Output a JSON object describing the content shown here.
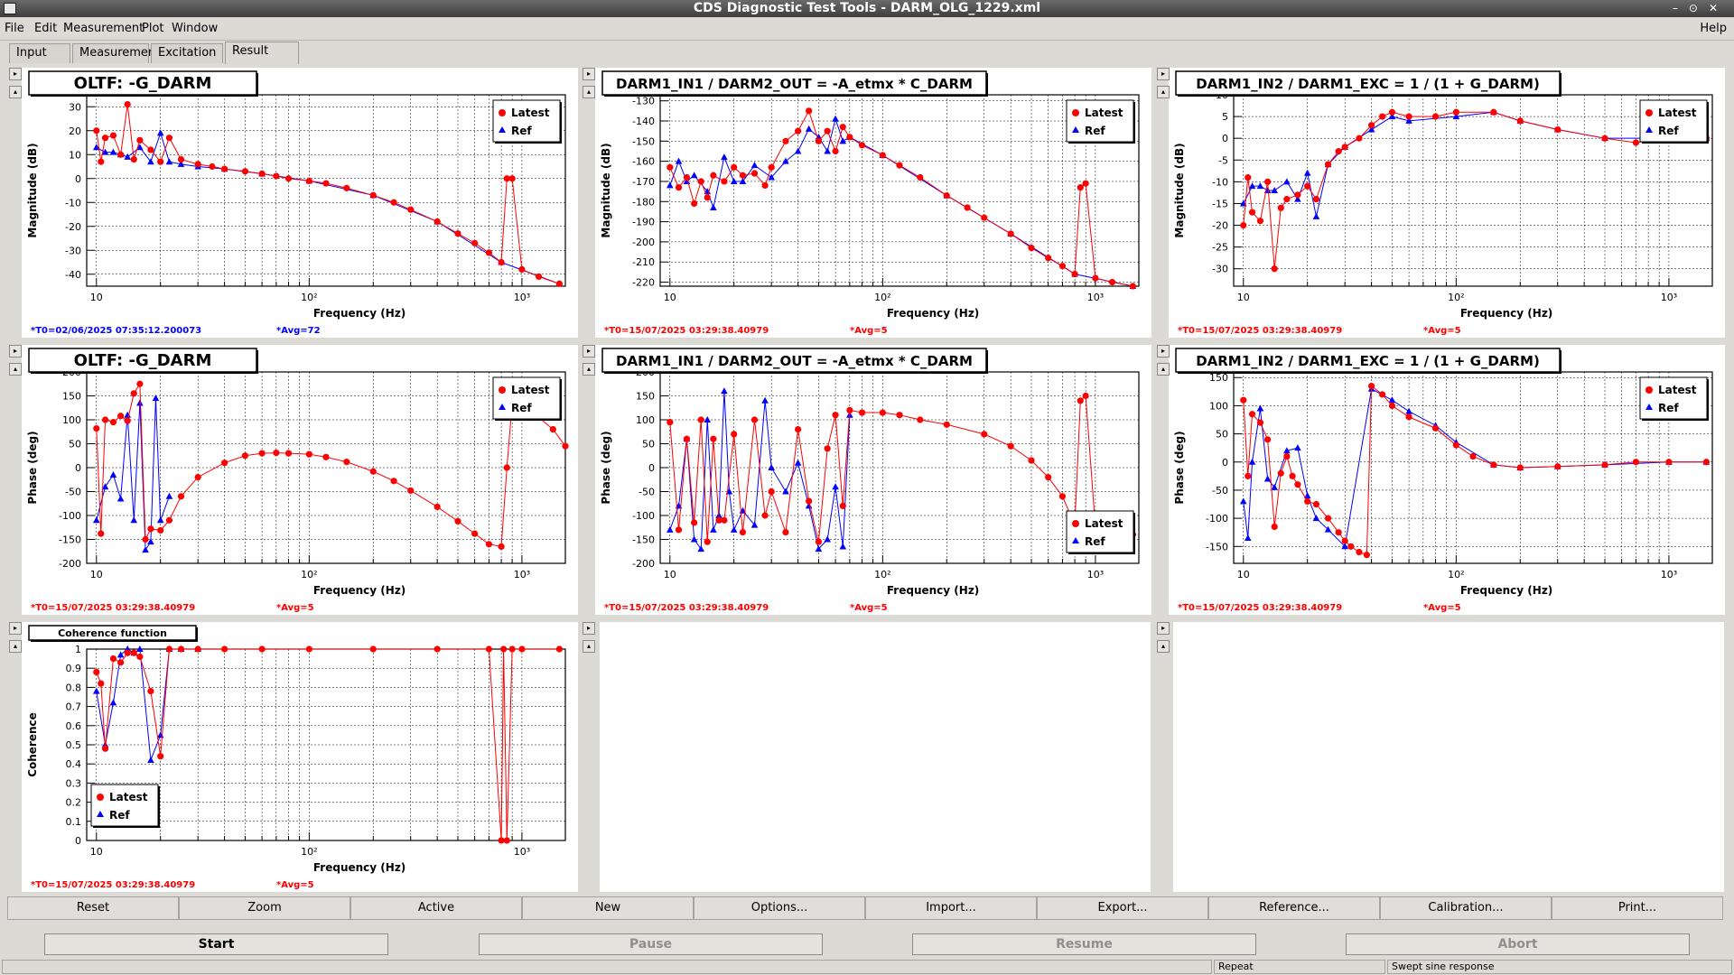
{
  "window": {
    "title": "CDS Diagnostic Test Tools - DARM_OLG_1229.xml"
  },
  "menu": {
    "items": [
      "File",
      "Edit",
      "Measurement",
      "Plot",
      "Window"
    ],
    "help": "Help"
  },
  "tabs": [
    "Input",
    "Measurement",
    "Excitation",
    "Result"
  ],
  "active_tab": "Result",
  "legend": {
    "latest": "Latest",
    "ref": "Ref"
  },
  "colors": {
    "latest": "#ff0000",
    "ref": "#0000ff",
    "blue_stamp": "#0000ff",
    "red_stamp": "#ff0000"
  },
  "pads": [
    {
      "title": "OLTF: -G_DARM",
      "ylabel": "Magnitude (dB)",
      "xlabel": "Frequency (Hz)",
      "yticks": [
        "30",
        "20",
        "10",
        "0",
        "-10",
        "-20",
        "-30",
        "-40"
      ],
      "ylim": [
        -45,
        35
      ],
      "t0": "*T0=02/06/2025 07:35:12.200073",
      "avg": "*Avg=72",
      "stamp_color": "blue"
    },
    {
      "title": "DARM1_IN1 / DARM2_OUT = -A_etmx * C_DARM",
      "ylabel": "Magnitude (dB)",
      "xlabel": "Frequency (Hz)",
      "yticks": [
        "-130",
        "-140",
        "-150",
        "-160",
        "-170",
        "-180",
        "-190",
        "-200",
        "-210",
        "-220"
      ],
      "ylim": [
        -222,
        -127
      ],
      "t0": "*T0=15/07/2025 03:29:38.40979",
      "avg": "*Avg=5",
      "stamp_color": "red"
    },
    {
      "title": "DARM1_IN2 / DARM1_EXC = 1 / (1 + G_DARM)",
      "ylabel": "Magnitude (dB)",
      "xlabel": "Frequency (Hz)",
      "yticks": [
        "10",
        "5",
        "0",
        "-5",
        "-10",
        "-15",
        "-20",
        "-25",
        "-30"
      ],
      "ylim": [
        -34,
        10
      ],
      "t0": "*T0=15/07/2025 03:29:38.40979",
      "avg": "*Avg=5",
      "stamp_color": "red"
    },
    {
      "title": "OLTF: -G_DARM",
      "ylabel": "Phase (deg)",
      "xlabel": "Frequency (Hz)",
      "yticks": [
        "200",
        "150",
        "100",
        "50",
        "0",
        "-50",
        "-100",
        "-150",
        "-200"
      ],
      "ylim": [
        -200,
        200
      ],
      "t0": "*T0=15/07/2025 03:29:38.40979",
      "avg": "*Avg=5",
      "stamp_color": "red"
    },
    {
      "title": "DARM1_IN1 / DARM2_OUT = -A_etmx * C_DARM",
      "ylabel": "Phase (deg)",
      "xlabel": "Frequency (Hz)",
      "yticks": [
        "200",
        "150",
        "100",
        "50",
        "0",
        "-50",
        "-100",
        "-150",
        "-200"
      ],
      "ylim": [
        -200,
        200
      ],
      "t0": "*T0=15/07/2025 03:29:38.40979",
      "avg": "*Avg=5",
      "stamp_color": "red"
    },
    {
      "title": "DARM1_IN2 / DARM1_EXC = 1 / (1 + G_DARM)",
      "ylabel": "Phase (deg)",
      "xlabel": "Frequency (Hz)",
      "yticks": [
        "150",
        "100",
        "50",
        "0",
        "-50",
        "-100",
        "-150"
      ],
      "ylim": [
        -180,
        160
      ],
      "t0": "*T0=15/07/2025 03:29:38.40979",
      "avg": "*Avg=5",
      "stamp_color": "red"
    },
    {
      "title": "Coherence function",
      "ylabel": "Coherence",
      "xlabel": "Frequency (Hz)",
      "yticks": [
        "1",
        "0.9",
        "0.8",
        "0.7",
        "0.6",
        "0.5",
        "0.4",
        "0.3",
        "0.2",
        "0.1",
        "0"
      ],
      "ylim": [
        0,
        1
      ],
      "t0": "*T0=15/07/2025 03:29:38.40979",
      "avg": "*Avg=5",
      "stamp_color": "red"
    }
  ],
  "xticks": [
    "10",
    "10²",
    "10³"
  ],
  "chart_data": [
    {
      "type": "line",
      "title": "OLTF: -G_DARM",
      "ylabel": "Magnitude (dB)",
      "xlabel": "Frequency (Hz)",
      "xlog": true,
      "xlim": [
        9,
        1600
      ],
      "ylim": [
        -45,
        35
      ],
      "series": [
        {
          "name": "Latest",
          "x": [
            10,
            10.5,
            11,
            12,
            13,
            14,
            15,
            16,
            18,
            20,
            22,
            25,
            30,
            35,
            40,
            50,
            60,
            70,
            80,
            100,
            120,
            150,
            200,
            250,
            300,
            400,
            500,
            600,
            700,
            800,
            850,
            900,
            1000,
            1200,
            1500
          ],
          "y": [
            20,
            7,
            17,
            18,
            10,
            31,
            8,
            16,
            12,
            7,
            17,
            8,
            6,
            5,
            4,
            3,
            2,
            1,
            0,
            -1,
            -2,
            -4,
            -7,
            -10,
            -13,
            -18,
            -23,
            -27,
            -31,
            -35,
            0,
            0,
            -38,
            -41,
            -44
          ]
        },
        {
          "name": "Ref",
          "x": [
            10,
            11,
            12,
            13,
            14,
            16,
            18,
            20,
            22,
            25,
            30,
            40,
            60,
            100,
            200,
            400,
            800,
            1500
          ],
          "y": [
            13,
            11,
            11,
            10,
            9,
            13,
            7,
            19,
            7,
            6,
            5,
            4,
            2,
            -1,
            -7,
            -18,
            -35,
            -44
          ]
        }
      ]
    },
    {
      "type": "line",
      "title": "DARM1_IN1 / DARM2_OUT = -A_etmx * C_DARM",
      "ylabel": "Magnitude (dB)",
      "xlabel": "Frequency (Hz)",
      "xlog": true,
      "xlim": [
        9,
        1600
      ],
      "ylim": [
        -222,
        -127
      ],
      "series": [
        {
          "name": "Latest",
          "x": [
            10,
            11,
            12,
            13,
            14,
            15,
            16,
            18,
            20,
            22,
            25,
            28,
            30,
            35,
            40,
            45,
            50,
            55,
            60,
            65,
            70,
            80,
            100,
            120,
            150,
            200,
            250,
            300,
            400,
            500,
            600,
            700,
            800,
            850,
            900,
            1000,
            1200,
            1500
          ],
          "y": [
            -163,
            -173,
            -168,
            -181,
            -170,
            -178,
            -167,
            -170,
            -163,
            -167,
            -166,
            -172,
            -163,
            -150,
            -145,
            -135,
            -150,
            -145,
            -155,
            -143,
            -148,
            -152,
            -157,
            -162,
            -168,
            -177,
            -183,
            -188,
            -196,
            -203,
            -208,
            -212,
            -216,
            -173,
            -171,
            -218,
            -220,
            -222
          ]
        },
        {
          "name": "Ref",
          "x": [
            10,
            11,
            12,
            13,
            15,
            16,
            18,
            20,
            22,
            25,
            30,
            35,
            40,
            45,
            50,
            55,
            60,
            65,
            70,
            100,
            200,
            400,
            800,
            1500
          ],
          "y": [
            -172,
            -160,
            -170,
            -167,
            -175,
            -183,
            -158,
            -170,
            -170,
            -162,
            -168,
            -160,
            -155,
            -144,
            -148,
            -155,
            -139,
            -150,
            -148,
            -157,
            -177,
            -196,
            -216,
            -222
          ]
        }
      ]
    },
    {
      "type": "line",
      "title": "DARM1_IN2 / DARM1_EXC = 1 / (1 + G_DARM)",
      "ylabel": "Magnitude (dB)",
      "xlabel": "Frequency (Hz)",
      "xlog": true,
      "xlim": [
        9,
        1600
      ],
      "ylim": [
        -34,
        10
      ],
      "series": [
        {
          "name": "Latest",
          "x": [
            10,
            10.5,
            11,
            12,
            13,
            14,
            15,
            16,
            18,
            20,
            22,
            25,
            28,
            30,
            35,
            40,
            45,
            50,
            60,
            80,
            100,
            150,
            200,
            300,
            500,
            700,
            1000,
            1500
          ],
          "y": [
            -20,
            -9,
            -17,
            -19,
            -10,
            -30,
            -16,
            -14,
            -13,
            -11,
            -14,
            -6,
            -3,
            -2,
            0,
            3,
            5,
            6,
            5,
            5,
            6,
            6,
            4,
            2,
            0,
            -1,
            0,
            0
          ]
        },
        {
          "name": "Ref",
          "x": [
            10,
            11,
            12,
            13,
            14,
            16,
            18,
            20,
            22,
            25,
            30,
            40,
            50,
            60,
            100,
            150,
            200,
            300,
            500,
            1000,
            1500
          ],
          "y": [
            -15,
            -11,
            -11,
            -12,
            -12,
            -10,
            -14,
            -8,
            -18,
            -6,
            -2,
            2,
            5,
            4,
            5,
            6,
            4,
            2,
            0,
            0,
            0
          ]
        }
      ]
    },
    {
      "type": "line",
      "title": "OLTF: -G_DARM",
      "ylabel": "Phase (deg)",
      "xlabel": "Frequency (Hz)",
      "xlog": true,
      "xlim": [
        9,
        1600
      ],
      "ylim": [
        -200,
        200
      ],
      "series": [
        {
          "name": "Latest",
          "x": [
            10,
            10.5,
            11,
            12,
            13,
            14,
            15,
            16,
            17,
            18,
            20,
            22,
            25,
            30,
            40,
            50,
            60,
            70,
            80,
            100,
            120,
            150,
            200,
            250,
            300,
            400,
            500,
            600,
            700,
            800,
            850,
            900,
            1000,
            1200,
            1400,
            1600
          ],
          "y": [
            82,
            -138,
            100,
            95,
            108,
            98,
            155,
            175,
            -150,
            -128,
            -131,
            -110,
            -60,
            -20,
            10,
            25,
            30,
            31,
            30,
            28,
            22,
            12,
            -8,
            -28,
            -48,
            -82,
            -112,
            -138,
            -160,
            -165,
            0,
            135,
            150,
            105,
            80,
            45
          ]
        },
        {
          "name": "Ref",
          "x": [
            10,
            11,
            12,
            13,
            14,
            15,
            16,
            17,
            18,
            19,
            20,
            22
          ],
          "y": [
            -110,
            -40,
            -15,
            -65,
            110,
            -110,
            135,
            -172,
            -155,
            145,
            -110,
            -60
          ]
        }
      ]
    },
    {
      "type": "line",
      "title": "DARM1_IN1 / DARM2_OUT = -A_etmx * C_DARM",
      "ylabel": "Phase (deg)",
      "xlabel": "Frequency (Hz)",
      "xlog": true,
      "xlim": [
        9,
        1600
      ],
      "ylim": [
        -200,
        200
      ],
      "series": [
        {
          "name": "Latest",
          "x": [
            10,
            11,
            12,
            13,
            14,
            15,
            16,
            17,
            18,
            20,
            22,
            25,
            28,
            30,
            35,
            40,
            45,
            50,
            55,
            60,
            65,
            70,
            80,
            100,
            120,
            150,
            200,
            300,
            400,
            500,
            600,
            700,
            800,
            850,
            900,
            1000,
            1200,
            1500
          ],
          "y": [
            95,
            -130,
            60,
            -115,
            100,
            -155,
            60,
            -110,
            -110,
            70,
            -135,
            100,
            -100,
            -50,
            -135,
            80,
            -70,
            -155,
            40,
            110,
            -80,
            120,
            115,
            115,
            110,
            100,
            90,
            70,
            45,
            15,
            -20,
            -60,
            -120,
            140,
            150,
            -125,
            -135,
            -140
          ]
        },
        {
          "name": "Ref",
          "x": [
            10,
            11,
            12,
            13,
            14,
            15,
            16,
            17,
            18,
            19,
            20,
            22,
            25,
            28,
            30,
            35,
            40,
            45,
            50,
            55,
            60,
            65,
            70
          ],
          "y": [
            -130,
            -80,
            60,
            -150,
            -170,
            100,
            -130,
            -100,
            160,
            -50,
            -130,
            -90,
            -120,
            140,
            0,
            -50,
            10,
            -80,
            -170,
            -150,
            -40,
            -165,
            110
          ]
        }
      ]
    },
    {
      "type": "line",
      "title": "DARM1_IN2 / DARM1_EXC = 1 / (1 + G_DARM)",
      "ylabel": "Phase (deg)",
      "xlabel": "Frequency (Hz)",
      "xlog": true,
      "xlim": [
        9,
        1600
      ],
      "ylim": [
        -180,
        160
      ],
      "series": [
        {
          "name": "Latest",
          "x": [
            10,
            10.5,
            11,
            12,
            13,
            14,
            15,
            16,
            17,
            18,
            20,
            22,
            25,
            28,
            30,
            32,
            35,
            38,
            40,
            45,
            50,
            60,
            80,
            100,
            120,
            150,
            200,
            300,
            500,
            700,
            1000,
            1500
          ],
          "y": [
            110,
            -25,
            85,
            70,
            40,
            -115,
            -20,
            10,
            -25,
            -40,
            -70,
            -75,
            -100,
            -125,
            -140,
            -150,
            -160,
            -165,
            135,
            120,
            100,
            80,
            60,
            30,
            10,
            -5,
            -10,
            -8,
            -5,
            0,
            0,
            0
          ]
        },
        {
          "name": "Ref",
          "x": [
            10,
            10.5,
            11,
            12,
            13,
            14,
            16,
            18,
            20,
            22,
            25,
            30,
            40,
            50,
            60,
            80,
            100,
            150,
            200,
            300,
            500,
            1000,
            1500
          ],
          "y": [
            -70,
            -135,
            0,
            95,
            -30,
            -45,
            20,
            25,
            -60,
            -100,
            -120,
            -150,
            130,
            110,
            90,
            65,
            35,
            -5,
            -10,
            -8,
            -5,
            0,
            0
          ]
        }
      ]
    },
    {
      "type": "line",
      "title": "Coherence function",
      "ylabel": "Coherence",
      "xlabel": "Frequency (Hz)",
      "xlog": true,
      "xlim": [
        9,
        1600
      ],
      "ylim": [
        0,
        1
      ],
      "series": [
        {
          "name": "Latest",
          "x": [
            10,
            10.5,
            11,
            12,
            13,
            14,
            15,
            16,
            18,
            20,
            22,
            25,
            30,
            40,
            60,
            100,
            200,
            400,
            700,
            800,
            820,
            850,
            900,
            1000,
            1500
          ],
          "y": [
            0.88,
            0.82,
            0.48,
            0.95,
            0.93,
            0.98,
            0.98,
            0.96,
            0.78,
            0.44,
            1,
            1,
            1,
            1,
            1,
            1,
            1,
            1,
            1,
            0,
            1,
            0,
            1,
            1,
            1
          ]
        },
        {
          "name": "Ref",
          "x": [
            10,
            11,
            12,
            13,
            14,
            15,
            16,
            18,
            20,
            22,
            25,
            30
          ],
          "y": [
            0.78,
            0.5,
            0.72,
            0.97,
            1,
            0.98,
            1,
            0.42,
            0.55,
            1,
            1,
            1
          ]
        }
      ]
    }
  ],
  "buttons": [
    "Reset",
    "Zoom",
    "Active",
    "New",
    "Options...",
    "Import...",
    "Export...",
    "Reference...",
    "Calibration...",
    "Print..."
  ],
  "controls": {
    "start": "Start",
    "pause": "Pause",
    "resume": "Resume",
    "abort": "Abort"
  },
  "status": {
    "cell1": "",
    "cell2": "Repeat",
    "cell3": "Swept sine response"
  }
}
